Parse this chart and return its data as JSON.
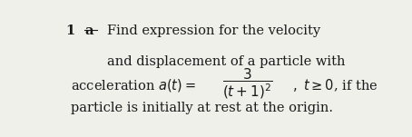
{
  "background_color": "#f0f0eb",
  "text_color": "#1a1a1a",
  "number": "1",
  "letter": "a",
  "line1": "Find expression for the velocity",
  "line2": "and displacement of a particle with",
  "line4": "particle is initially at rest at the origin.",
  "fontsize_body": 10.5
}
